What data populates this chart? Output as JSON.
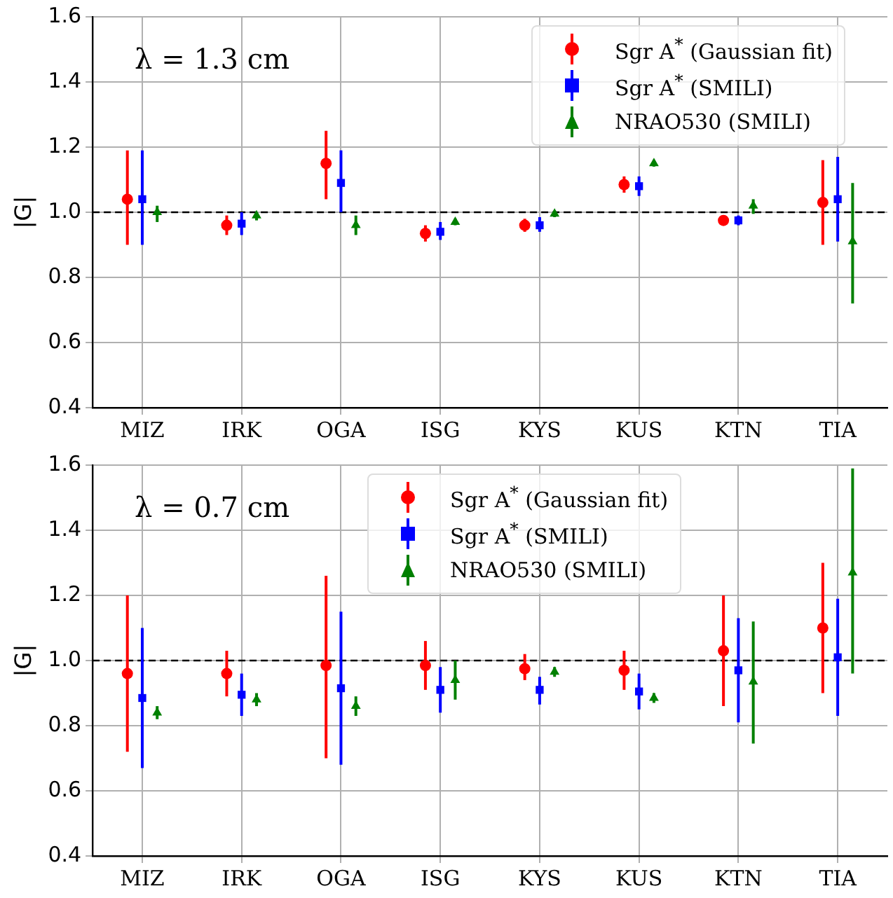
{
  "chart_data": [
    {
      "type": "scatter",
      "ylabel": "|G|",
      "annotations": [
        "λ = 1.3 cm"
      ],
      "categories": [
        "MIZ",
        "IRK",
        "OGA",
        "ISG",
        "KYS",
        "KUS",
        "KTN",
        "TIA"
      ],
      "ylim": [
        0.4,
        1.6
      ],
      "yticks": [
        0.4,
        0.6,
        0.8,
        {
          "value": 1,
          "label": "1.0"
        },
        1.2,
        1.4,
        1.6
      ],
      "grid": true,
      "legend": "top right",
      "ref_lines": [
        {
          "axis": "y",
          "value": 1.0,
          "color": "#000000",
          "line_style": "dashed"
        }
      ],
      "series": [
        {
          "name": "Sgr A$^{*}$ (Gaussian fit)",
          "color": "#ff0000",
          "marker": "circle",
          "values": [
            1.04,
            0.96,
            1.15,
            0.935,
            0.96,
            1.085,
            0.975,
            1.03
          ],
          "errors": [
            [
              0.9,
              1.19
            ],
            [
              0.93,
              0.99
            ],
            [
              1.04,
              1.25
            ],
            [
              0.91,
              0.96
            ],
            [
              0.94,
              0.98
            ],
            [
              1.06,
              1.11
            ],
            [
              0.96,
              0.99
            ],
            [
              0.9,
              1.16
            ]
          ]
        },
        {
          "name": "Sgr A$^{*}$ (SMILI)",
          "color": "#0000ff",
          "marker": "square",
          "values": [
            1.04,
            0.965,
            1.09,
            0.94,
            0.96,
            1.08,
            0.975,
            1.04
          ],
          "errors": [
            [
              0.9,
              1.19
            ],
            [
              0.93,
              1.0
            ],
            [
              1.0,
              1.19
            ],
            [
              0.915,
              0.97
            ],
            [
              0.94,
              0.985
            ],
            [
              1.05,
              1.11
            ],
            [
              0.96,
              0.99
            ],
            [
              0.91,
              1.17
            ]
          ]
        },
        {
          "name": "NRAO530 (SMILI)",
          "color": "#008000",
          "marker": "triangle",
          "values": [
            1.0,
            0.99,
            0.96,
            0.97,
            0.995,
            1.15,
            1.02,
            0.91
          ],
          "errors": [
            [
              0.97,
              1.02
            ],
            [
              0.975,
              1.0
            ],
            [
              0.93,
              0.99
            ],
            [
              0.96,
              0.98
            ],
            [
              0.985,
              1.0
            ],
            [
              1.14,
              1.16
            ],
            [
              0.995,
              1.04
            ],
            [
              0.72,
              1.09
            ]
          ]
        }
      ]
    },
    {
      "type": "scatter",
      "ylabel": "|G|",
      "annotations": [
        "λ = 0.7 cm"
      ],
      "categories": [
        "MIZ",
        "IRK",
        "OGA",
        "ISG",
        "KYS",
        "KUS",
        "KTN",
        "TIA"
      ],
      "ylim": [
        0.4,
        1.6
      ],
      "yticks": [
        0.4,
        0.6,
        0.8,
        {
          "value": 1,
          "label": "1.0"
        },
        1.2,
        1.4,
        1.6
      ],
      "grid": true,
      "legend": "top",
      "ref_lines": [
        {
          "axis": "y",
          "value": 1.0,
          "color": "#000000",
          "line_style": "dashed"
        }
      ],
      "series": [
        {
          "name": "Sgr A$^{*}$ (Gaussian fit)",
          "color": "#ff0000",
          "marker": "circle",
          "values": [
            0.96,
            0.96,
            0.985,
            0.985,
            0.975,
            0.97,
            1.03,
            1.1
          ],
          "errors": [
            [
              0.72,
              1.2
            ],
            [
              0.89,
              1.03
            ],
            [
              0.7,
              1.26
            ],
            [
              0.91,
              1.06
            ],
            [
              0.94,
              1.02
            ],
            [
              0.91,
              1.03
            ],
            [
              0.86,
              1.2
            ],
            [
              0.9,
              1.3
            ]
          ]
        },
        {
          "name": "Sgr A$^{*}$ (SMILI)",
          "color": "#0000ff",
          "marker": "square",
          "values": [
            0.885,
            0.895,
            0.915,
            0.91,
            0.91,
            0.905,
            0.97,
            1.01
          ],
          "errors": [
            [
              0.67,
              1.1
            ],
            [
              0.83,
              0.96
            ],
            [
              0.68,
              1.15
            ],
            [
              0.84,
              0.98
            ],
            [
              0.865,
              0.95
            ],
            [
              0.85,
              0.96
            ],
            [
              0.81,
              1.13
            ],
            [
              0.83,
              1.19
            ]
          ]
        },
        {
          "name": "NRAO530 (SMILI)",
          "color": "#008000",
          "marker": "triangle",
          "values": [
            0.84,
            0.88,
            0.86,
            0.94,
            0.965,
            0.885,
            0.935,
            1.27
          ],
          "errors": [
            [
              0.82,
              0.86
            ],
            [
              0.86,
              0.9
            ],
            [
              0.83,
              0.89
            ],
            [
              0.88,
              1.0
            ],
            [
              0.95,
              0.98
            ],
            [
              0.87,
              0.9
            ],
            [
              0.745,
              1.12
            ],
            [
              0.96,
              1.59
            ]
          ]
        }
      ]
    }
  ]
}
